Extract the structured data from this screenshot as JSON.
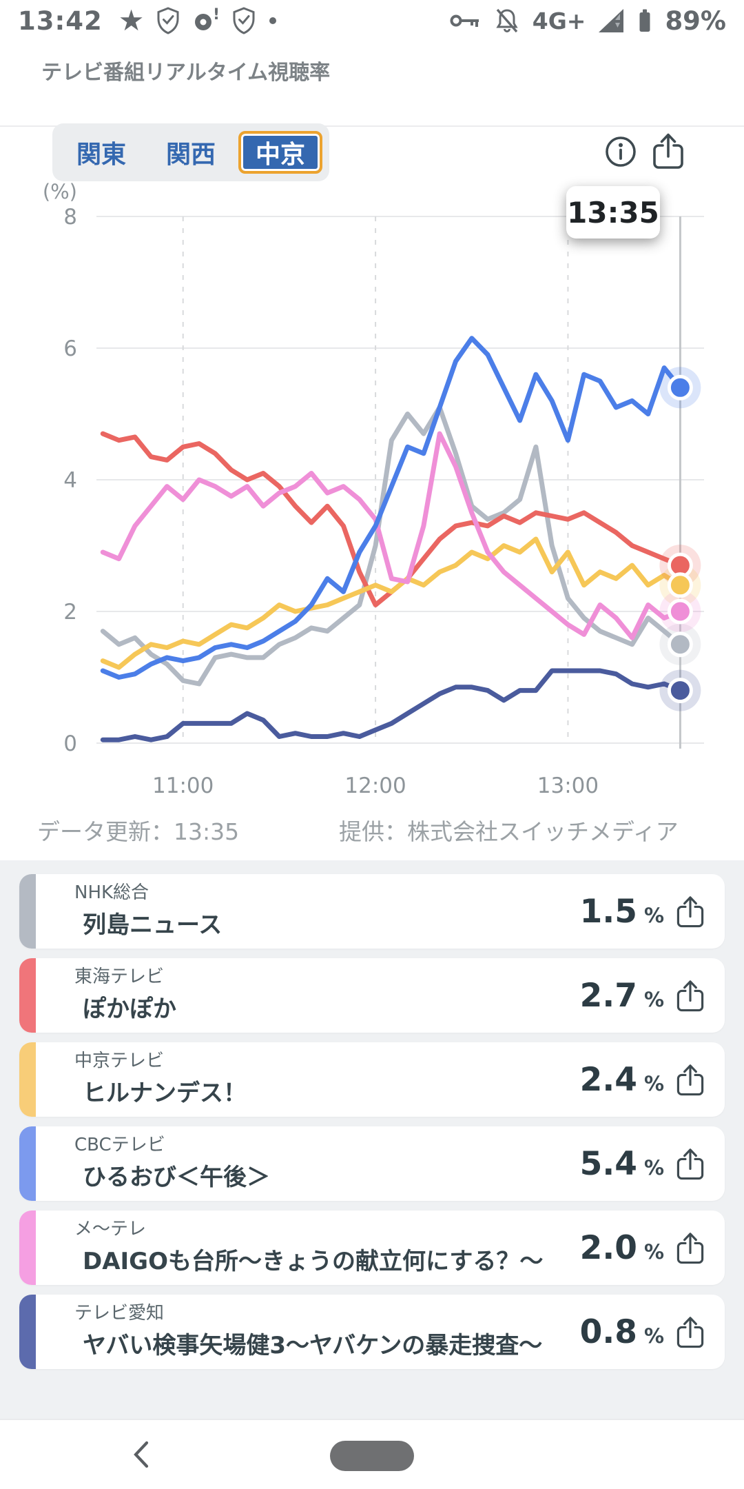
{
  "status_bar": {
    "time": "13:42",
    "network": "4G+",
    "battery_percent": "89%",
    "left_icons": [
      "star-icon",
      "shield-check-icon",
      "alert-circle-icon",
      "shield-check-icon",
      "dot-icon"
    ],
    "right_icons": [
      "key-icon",
      "bell-off-icon",
      "signal-icon",
      "battery-icon"
    ]
  },
  "app_header": {
    "title": "テレビ番組リアルタイム視聴率"
  },
  "region_tabs": {
    "items": [
      {
        "label": "関東",
        "selected": false
      },
      {
        "label": "関西",
        "selected": false
      },
      {
        "label": "中京",
        "selected": true
      }
    ],
    "selected_color": "#3468b0",
    "selected_border": "#eca32f"
  },
  "toolbar": {
    "info_icon": "info-circle",
    "share_icon": "share-upload"
  },
  "tooltip": {
    "time": "13:35"
  },
  "chart_data": {
    "type": "line",
    "title": "",
    "ylabel": "(%)",
    "ylim": [
      0,
      8
    ],
    "y_ticks": [
      0,
      2,
      4,
      6,
      8
    ],
    "x_ticks": [
      {
        "label": "11:00",
        "minutes": 660
      },
      {
        "label": "12:00",
        "minutes": 720
      },
      {
        "label": "13:00",
        "minutes": 780
      }
    ],
    "x_range_minutes": [
      633,
      822
    ],
    "start_minutes": 635,
    "interval_minutes": 5,
    "cursor_minutes": 815,
    "cursor_label": "13:35",
    "grid": true,
    "legend_position": "none",
    "series": [
      {
        "name": "テレビ愛知",
        "color": "#4a5b9d",
        "values": [
          0.05,
          0.05,
          0.1,
          0.05,
          0.1,
          0.3,
          0.3,
          0.3,
          0.3,
          0.45,
          0.35,
          0.1,
          0.15,
          0.1,
          0.1,
          0.15,
          0.1,
          0.2,
          0.3,
          0.45,
          0.6,
          0.75,
          0.85,
          0.85,
          0.8,
          0.65,
          0.8,
          0.8,
          1.1,
          1.1,
          1.1,
          1.1,
          1.05,
          0.9,
          0.85,
          0.9,
          0.8
        ]
      },
      {
        "name": "NHK総合",
        "color": "#b2b9c3",
        "values": [
          1.7,
          1.5,
          1.6,
          1.35,
          1.2,
          0.95,
          0.9,
          1.3,
          1.35,
          1.3,
          1.3,
          1.5,
          1.6,
          1.75,
          1.7,
          1.9,
          2.1,
          3.0,
          4.6,
          5.0,
          4.7,
          5.1,
          4.4,
          3.6,
          3.4,
          3.5,
          3.7,
          4.5,
          3.0,
          2.2,
          1.9,
          1.7,
          1.6,
          1.5,
          1.9,
          1.7,
          1.5
        ]
      },
      {
        "name": "東海テレビ",
        "color": "#ea6661",
        "values": [
          4.7,
          4.6,
          4.65,
          4.35,
          4.3,
          4.5,
          4.55,
          4.4,
          4.15,
          4.0,
          4.1,
          3.9,
          3.6,
          3.35,
          3.6,
          3.3,
          2.6,
          2.1,
          2.3,
          2.5,
          2.8,
          3.1,
          3.3,
          3.35,
          3.3,
          3.45,
          3.35,
          3.5,
          3.45,
          3.4,
          3.5,
          3.35,
          3.2,
          3.0,
          2.9,
          2.8,
          2.7
        ]
      },
      {
        "name": "中京テレビ",
        "color": "#f6c757",
        "values": [
          1.25,
          1.15,
          1.35,
          1.5,
          1.45,
          1.55,
          1.5,
          1.65,
          1.8,
          1.75,
          1.9,
          2.1,
          2.0,
          2.05,
          2.1,
          2.2,
          2.3,
          2.4,
          2.3,
          2.5,
          2.4,
          2.6,
          2.7,
          2.9,
          2.8,
          3.0,
          2.9,
          3.1,
          2.6,
          2.9,
          2.4,
          2.6,
          2.5,
          2.7,
          2.4,
          2.55,
          2.4
        ]
      },
      {
        "name": "メ〜テレ",
        "color": "#ef8fd7",
        "values": [
          2.9,
          2.8,
          3.3,
          3.6,
          3.9,
          3.7,
          4.0,
          3.9,
          3.75,
          3.9,
          3.6,
          3.8,
          3.9,
          4.1,
          3.8,
          3.9,
          3.7,
          3.4,
          2.5,
          2.45,
          3.3,
          4.7,
          4.2,
          3.5,
          2.9,
          2.6,
          2.4,
          2.2,
          2.0,
          1.8,
          1.65,
          2.1,
          1.9,
          1.6,
          2.1,
          1.9,
          2.0
        ]
      },
      {
        "name": "CBCテレビ",
        "color": "#4b7ee8",
        "values": [
          1.1,
          1.0,
          1.05,
          1.2,
          1.3,
          1.25,
          1.3,
          1.45,
          1.5,
          1.45,
          1.55,
          1.7,
          1.85,
          2.1,
          2.5,
          2.3,
          2.9,
          3.3,
          3.9,
          4.5,
          4.4,
          5.1,
          5.8,
          6.15,
          5.9,
          5.4,
          4.9,
          5.6,
          5.2,
          4.6,
          5.6,
          5.5,
          5.1,
          5.2,
          5.0,
          5.7,
          5.4
        ]
      }
    ]
  },
  "chart_footer": {
    "updated": "データ更新：13:35",
    "provider": "提供：株式会社スイッチメディア"
  },
  "channels": [
    {
      "network": "NHK総合",
      "program": "列島ニュース",
      "rating": "1.5",
      "unit": "%",
      "color": "#b4bac3"
    },
    {
      "network": "東海テレビ",
      "program": "ぽかぽか",
      "rating": "2.7",
      "unit": "%",
      "color": "#f0757a"
    },
    {
      "network": "中京テレビ",
      "program": "ヒルナンデス！",
      "rating": "2.4",
      "unit": "%",
      "color": "#f8cd78"
    },
    {
      "network": "CBCテレビ",
      "program": "ひるおび＜午後＞",
      "rating": "5.4",
      "unit": "%",
      "color": "#7c9aee"
    },
    {
      "network": "メ〜テレ",
      "program": "DAIGOも台所〜きょうの献立何にする？〜",
      "rating": "2.0",
      "unit": "%",
      "color": "#f59fe2"
    },
    {
      "network": "テレビ愛知",
      "program": "ヤバい検事矢場健3〜ヤバケンの暴走捜査〜",
      "rating": "0.8",
      "unit": "%",
      "color": "#5c6bad"
    }
  ],
  "bottom_nav": {
    "back_icon": "chevron-left",
    "home_icon": "home-pill"
  }
}
